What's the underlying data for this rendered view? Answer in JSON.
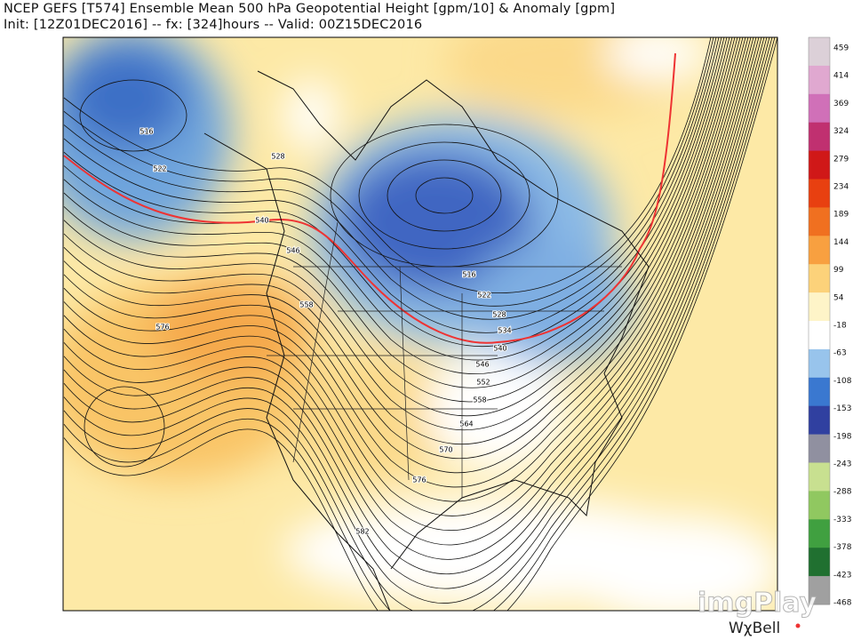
{
  "header": {
    "title": "NCEP GEFS [T574] Ensemble Mean 500 hPa Geopotential Height [gpm/10] & Anomaly [gpm]",
    "subtitle": "Init: [12Z01DEC2016] -- fx: [324]hours -- Valid: 00Z15DEC2016"
  },
  "map": {
    "contour_labels": [
      "516",
      "522",
      "528",
      "540",
      "546",
      "558",
      "576",
      "516",
      "522",
      "528",
      "534",
      "540",
      "546",
      "552",
      "558",
      "564",
      "570",
      "576",
      "582"
    ]
  },
  "colorbar": {
    "labels": [
      "459",
      "414",
      "369",
      "324",
      "279",
      "234",
      "189",
      "144",
      "99",
      "54",
      "-18",
      "-63",
      "-108",
      "-153",
      "-198",
      "-243",
      "-288",
      "-333",
      "-378",
      "-423",
      "-468"
    ]
  },
  "brand": "WχBell",
  "watermark": "imgPlay"
}
